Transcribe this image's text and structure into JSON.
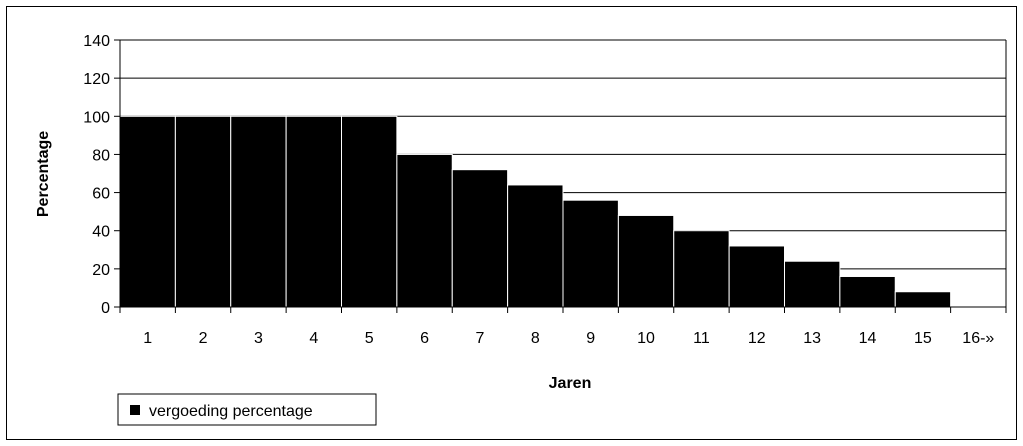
{
  "chart_data": {
    "type": "bar",
    "categories": [
      "1",
      "2",
      "3",
      "4",
      "5",
      "6",
      "7",
      "8",
      "9",
      "10",
      "11",
      "12",
      "13",
      "14",
      "15",
      "16-»"
    ],
    "series": [
      {
        "name": "vergoeding percentage",
        "values": [
          100,
          100,
          100,
          100,
          100,
          80,
          72,
          64,
          56,
          48,
          40,
          32,
          24,
          16,
          8,
          0
        ]
      }
    ],
    "xlabel": "Jaren",
    "ylabel": "Percentage",
    "ylim": [
      0,
      140
    ],
    "yticks": [
      0,
      20,
      40,
      60,
      80,
      100,
      120,
      140
    ],
    "grid": true,
    "legend": "bottom-left",
    "colors": {
      "bar": "#000000",
      "bar_edge": "#ffffff",
      "grid": "#000000",
      "background": "#ffffff"
    }
  }
}
